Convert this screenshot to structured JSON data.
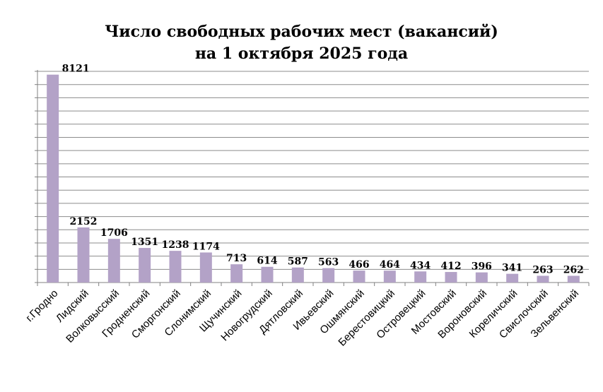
{
  "chart_data": {
    "type": "bar",
    "title_line1": "Число свободных рабочих мест (вакансий)",
    "title_line2": "на 1 октября 2025 года",
    "categories": [
      "г.Гродно",
      "Лидский",
      "Волковысский",
      "Гродненский",
      "Сморгонский",
      "Слонимский",
      "Щучинский",
      "Новогрудский",
      "Дятловский",
      "Ивьевский",
      "Ошмянский",
      "Берестовицкий",
      "Островецкий",
      "Мостовский",
      "Вороновский",
      "Кореличский",
      "Свислочский",
      "Зельвенский"
    ],
    "values": [
      8121,
      2152,
      1706,
      1351,
      1238,
      1174,
      713,
      614,
      587,
      563,
      466,
      464,
      434,
      412,
      396,
      341,
      263,
      262
    ],
    "data_labels": [
      "8121",
      "2152",
      "1706",
      "1351",
      "1238",
      "1174",
      "713",
      "614",
      "587",
      "563",
      "466",
      "464",
      "434",
      "412",
      "396",
      "341",
      "263",
      "262"
    ],
    "ylim": [
      0,
      8250
    ],
    "grid": true,
    "bar_color": "#b3a2c7",
    "legend": "none"
  }
}
